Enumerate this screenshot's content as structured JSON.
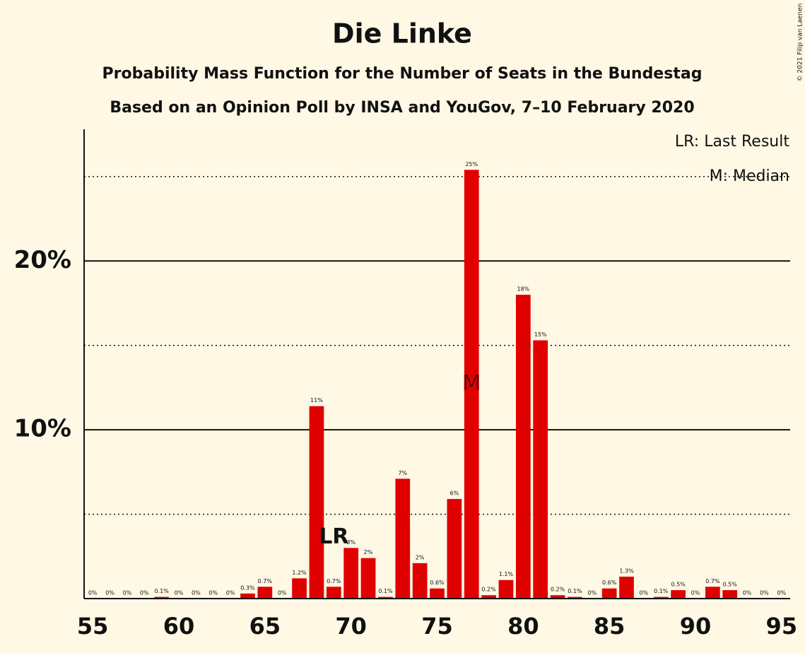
{
  "chart_data": {
    "type": "bar",
    "title": "Die Linke",
    "subtitle": "Probability Mass Function for the Number of Seats in the Bundestag",
    "subtitle2": "Based on an Opinion Poll by INSA and YouGov, 7–10 February 2020",
    "copyright": "© 2021 Filip van Laenen",
    "legend": [
      "LR: Last Result",
      "M: Median"
    ],
    "color": "#e00000",
    "categories": [
      55,
      56,
      57,
      58,
      59,
      60,
      61,
      62,
      63,
      64,
      65,
      66,
      67,
      68,
      69,
      70,
      71,
      72,
      73,
      74,
      75,
      76,
      77,
      78,
      79,
      80,
      81,
      82,
      83,
      84,
      85,
      86,
      87,
      88,
      89,
      90,
      91,
      92,
      93,
      94,
      95
    ],
    "values": [
      0,
      0,
      0,
      0,
      0.1,
      0,
      0,
      0,
      0,
      0.3,
      0.7,
      0,
      1.2,
      11.4,
      0.7,
      3.0,
      2.4,
      0.1,
      7.1,
      2.1,
      0.6,
      5.9,
      25.4,
      0.2,
      1.1,
      18.0,
      15.3,
      0.2,
      0.1,
      0,
      0.6,
      1.3,
      0,
      0.1,
      0.5,
      0,
      0.7,
      0.5,
      0,
      0,
      0
    ],
    "value_labels": [
      "0%",
      "0%",
      "0%",
      "0%",
      "0.1%",
      "0%",
      "0%",
      "0%",
      "0%",
      "0.3%",
      "0.7%",
      "0%",
      "1.2%",
      "11%",
      "0.7%",
      "3%",
      "2%",
      "0.1%",
      "7%",
      "2%",
      "0.6%",
      "6%",
      "25%",
      "0.2%",
      "1.1%",
      "18%",
      "15%",
      "0.2%",
      "0.1%",
      "0%",
      "0.6%",
      "1.3%",
      "0%",
      "0.1%",
      "0.5%",
      "0%",
      "0.7%",
      "0.5%",
      "0%",
      "0%",
      "0%"
    ],
    "annotations": [
      {
        "x": 69,
        "label": "LR"
      },
      {
        "x": 77,
        "label": "M"
      }
    ],
    "xlim": [
      54.5,
      95.5
    ],
    "xticks": [
      55,
      60,
      65,
      70,
      75,
      80,
      85,
      90,
      95
    ],
    "ylim": [
      0,
      27.8
    ],
    "yticks": [
      {
        "value": 10,
        "label": "10%"
      },
      {
        "value": 20,
        "label": "20%"
      }
    ],
    "minor_gridlines": [
      5,
      15,
      25
    ]
  }
}
